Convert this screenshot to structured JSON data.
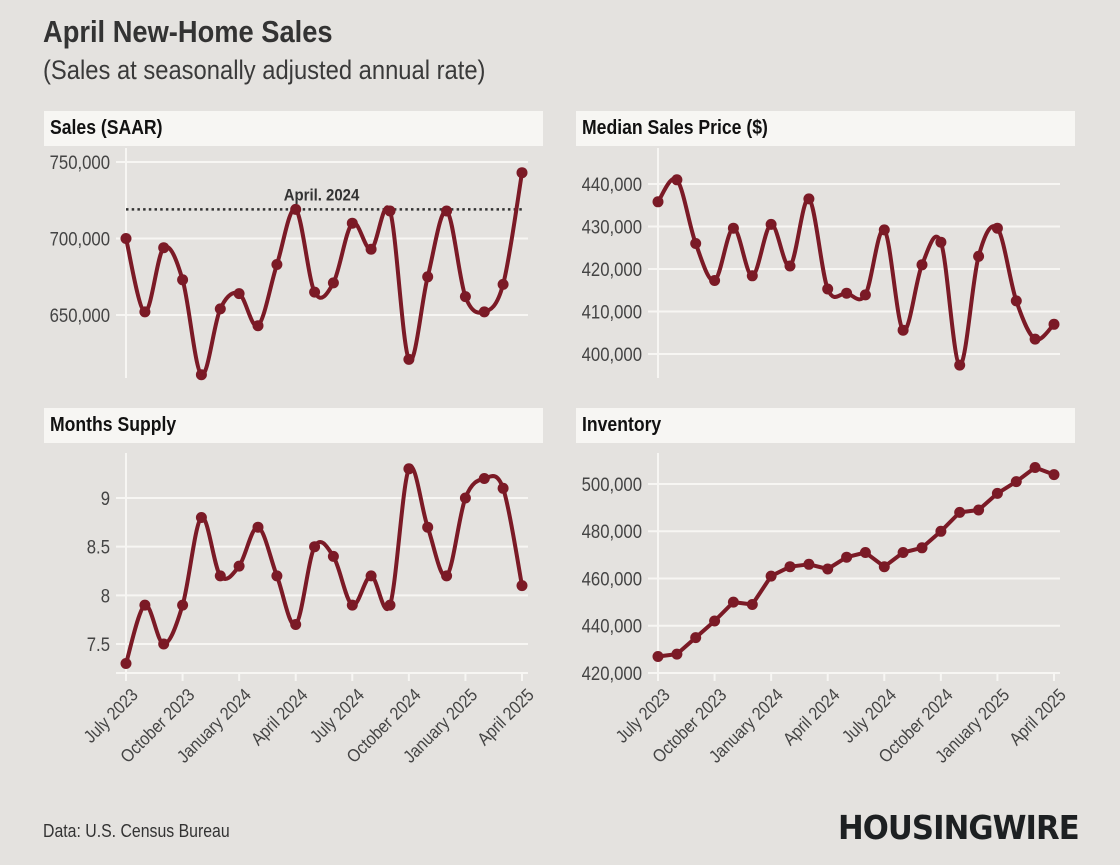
{
  "title": "April New-Home Sales",
  "subtitle": "(Sales at seasonally adjusted annual rate)",
  "source": "Data: U.S. Census Bureau",
  "logo": "HOUSINGWIRE",
  "colors": {
    "background": "#e4e2df",
    "panel_header": "#f7f6f3",
    "line": "#7b1a26",
    "grid": "#f7f6f3",
    "reference_line": "#333333"
  },
  "months": [
    "Jul 2023",
    "Aug 2023",
    "Sep 2023",
    "Oct 2023",
    "Nov 2023",
    "Dec 2023",
    "Jan 2024",
    "Feb 2024",
    "Mar 2024",
    "Apr 2024",
    "May 2024",
    "Jun 2024",
    "Jul 2024",
    "Aug 2024",
    "Sep 2024",
    "Oct 2024",
    "Nov 2024",
    "Dec 2024",
    "Jan 2025",
    "Feb 2025",
    "Mar 2025",
    "Apr 2025"
  ],
  "chart_data": [
    {
      "id": "sales",
      "type": "line",
      "title": "Sales (SAAR)",
      "xlabel": "",
      "ylabel": "",
      "x_tick_labels": [
        "July 2023",
        "October 2023",
        "January 2024",
        "April 2024",
        "July 2024",
        "October 2024",
        "January 2025",
        "April 2025"
      ],
      "x_tick_indices": [
        0,
        3,
        6,
        9,
        12,
        15,
        18,
        21
      ],
      "y_ticks": [
        650000,
        700000,
        750000
      ],
      "y_tick_labels": [
        "650,000",
        "700,000",
        "750,000"
      ],
      "ylim": [
        605000,
        758000
      ],
      "grid": true,
      "reference_line": {
        "label": "April. 2024",
        "value": 719000
      },
      "values": [
        700000,
        652000,
        694000,
        673000,
        611000,
        654000,
        664000,
        643000,
        683000,
        719000,
        665000,
        671000,
        710000,
        693000,
        718000,
        621000,
        675000,
        718000,
        662000,
        652000,
        670000,
        743000
      ]
    },
    {
      "id": "price",
      "type": "line",
      "title": "Median Sales Price ($)",
      "xlabel": "",
      "ylabel": "",
      "x_tick_labels": [],
      "x_tick_indices": [],
      "y_ticks": [
        400000,
        410000,
        420000,
        430000,
        440000
      ],
      "y_tick_labels": [
        "400,000",
        "410,000",
        "420,000",
        "430,000",
        "440,000"
      ],
      "ylim": [
        394800,
        446000
      ],
      "grid": true,
      "values": [
        435800,
        441000,
        426000,
        417300,
        429600,
        418400,
        430500,
        420700,
        436500,
        415300,
        414300,
        413900,
        429200,
        405600,
        421000,
        426300,
        397400,
        423000,
        429600,
        412500,
        403500,
        407000
      ]
    },
    {
      "id": "supply",
      "type": "line",
      "title": "Months Supply",
      "xlabel": "",
      "ylabel": "",
      "x_tick_labels": [
        "July 2023",
        "October 2023",
        "January 2024",
        "April 2024",
        "July 2024",
        "October 2024",
        "January 2025",
        "April 2025"
      ],
      "x_tick_indices": [
        0,
        3,
        6,
        9,
        12,
        15,
        18,
        21
      ],
      "y_ticks": [
        7.5,
        8,
        8.5,
        9
      ],
      "y_tick_labels": [
        "7.5",
        "8",
        "8.5",
        "9"
      ],
      "ylim": [
        7.2,
        9.45
      ],
      "grid": true,
      "values": [
        7.3,
        7.9,
        7.5,
        7.9,
        8.8,
        8.2,
        8.3,
        8.7,
        8.2,
        7.7,
        8.5,
        8.4,
        7.9,
        8.2,
        7.9,
        9.3,
        8.7,
        8.2,
        9.0,
        9.2,
        9.1,
        8.1
      ]
    },
    {
      "id": "inventory",
      "type": "line",
      "title": "Inventory",
      "xlabel": "",
      "ylabel": "",
      "x_tick_labels": [
        "July 2023",
        "October 2023",
        "January 2024",
        "April 2024",
        "July 2024",
        "October 2024",
        "January 2025",
        "April 2025"
      ],
      "x_tick_indices": [
        0,
        3,
        6,
        9,
        12,
        15,
        18,
        21
      ],
      "y_ticks": [
        420000,
        440000,
        460000,
        480000,
        500000
      ],
      "y_tick_labels": [
        "420,000",
        "440,000",
        "460,000",
        "480,000",
        "500,000"
      ],
      "ylim": [
        420000,
        512000
      ],
      "grid": true,
      "values": [
        427000,
        428000,
        435000,
        442000,
        450000,
        449000,
        461000,
        465000,
        466000,
        464000,
        469000,
        471000,
        465000,
        471000,
        473000,
        480000,
        488000,
        489000,
        496000,
        501000,
        507000,
        504000
      ]
    }
  ]
}
